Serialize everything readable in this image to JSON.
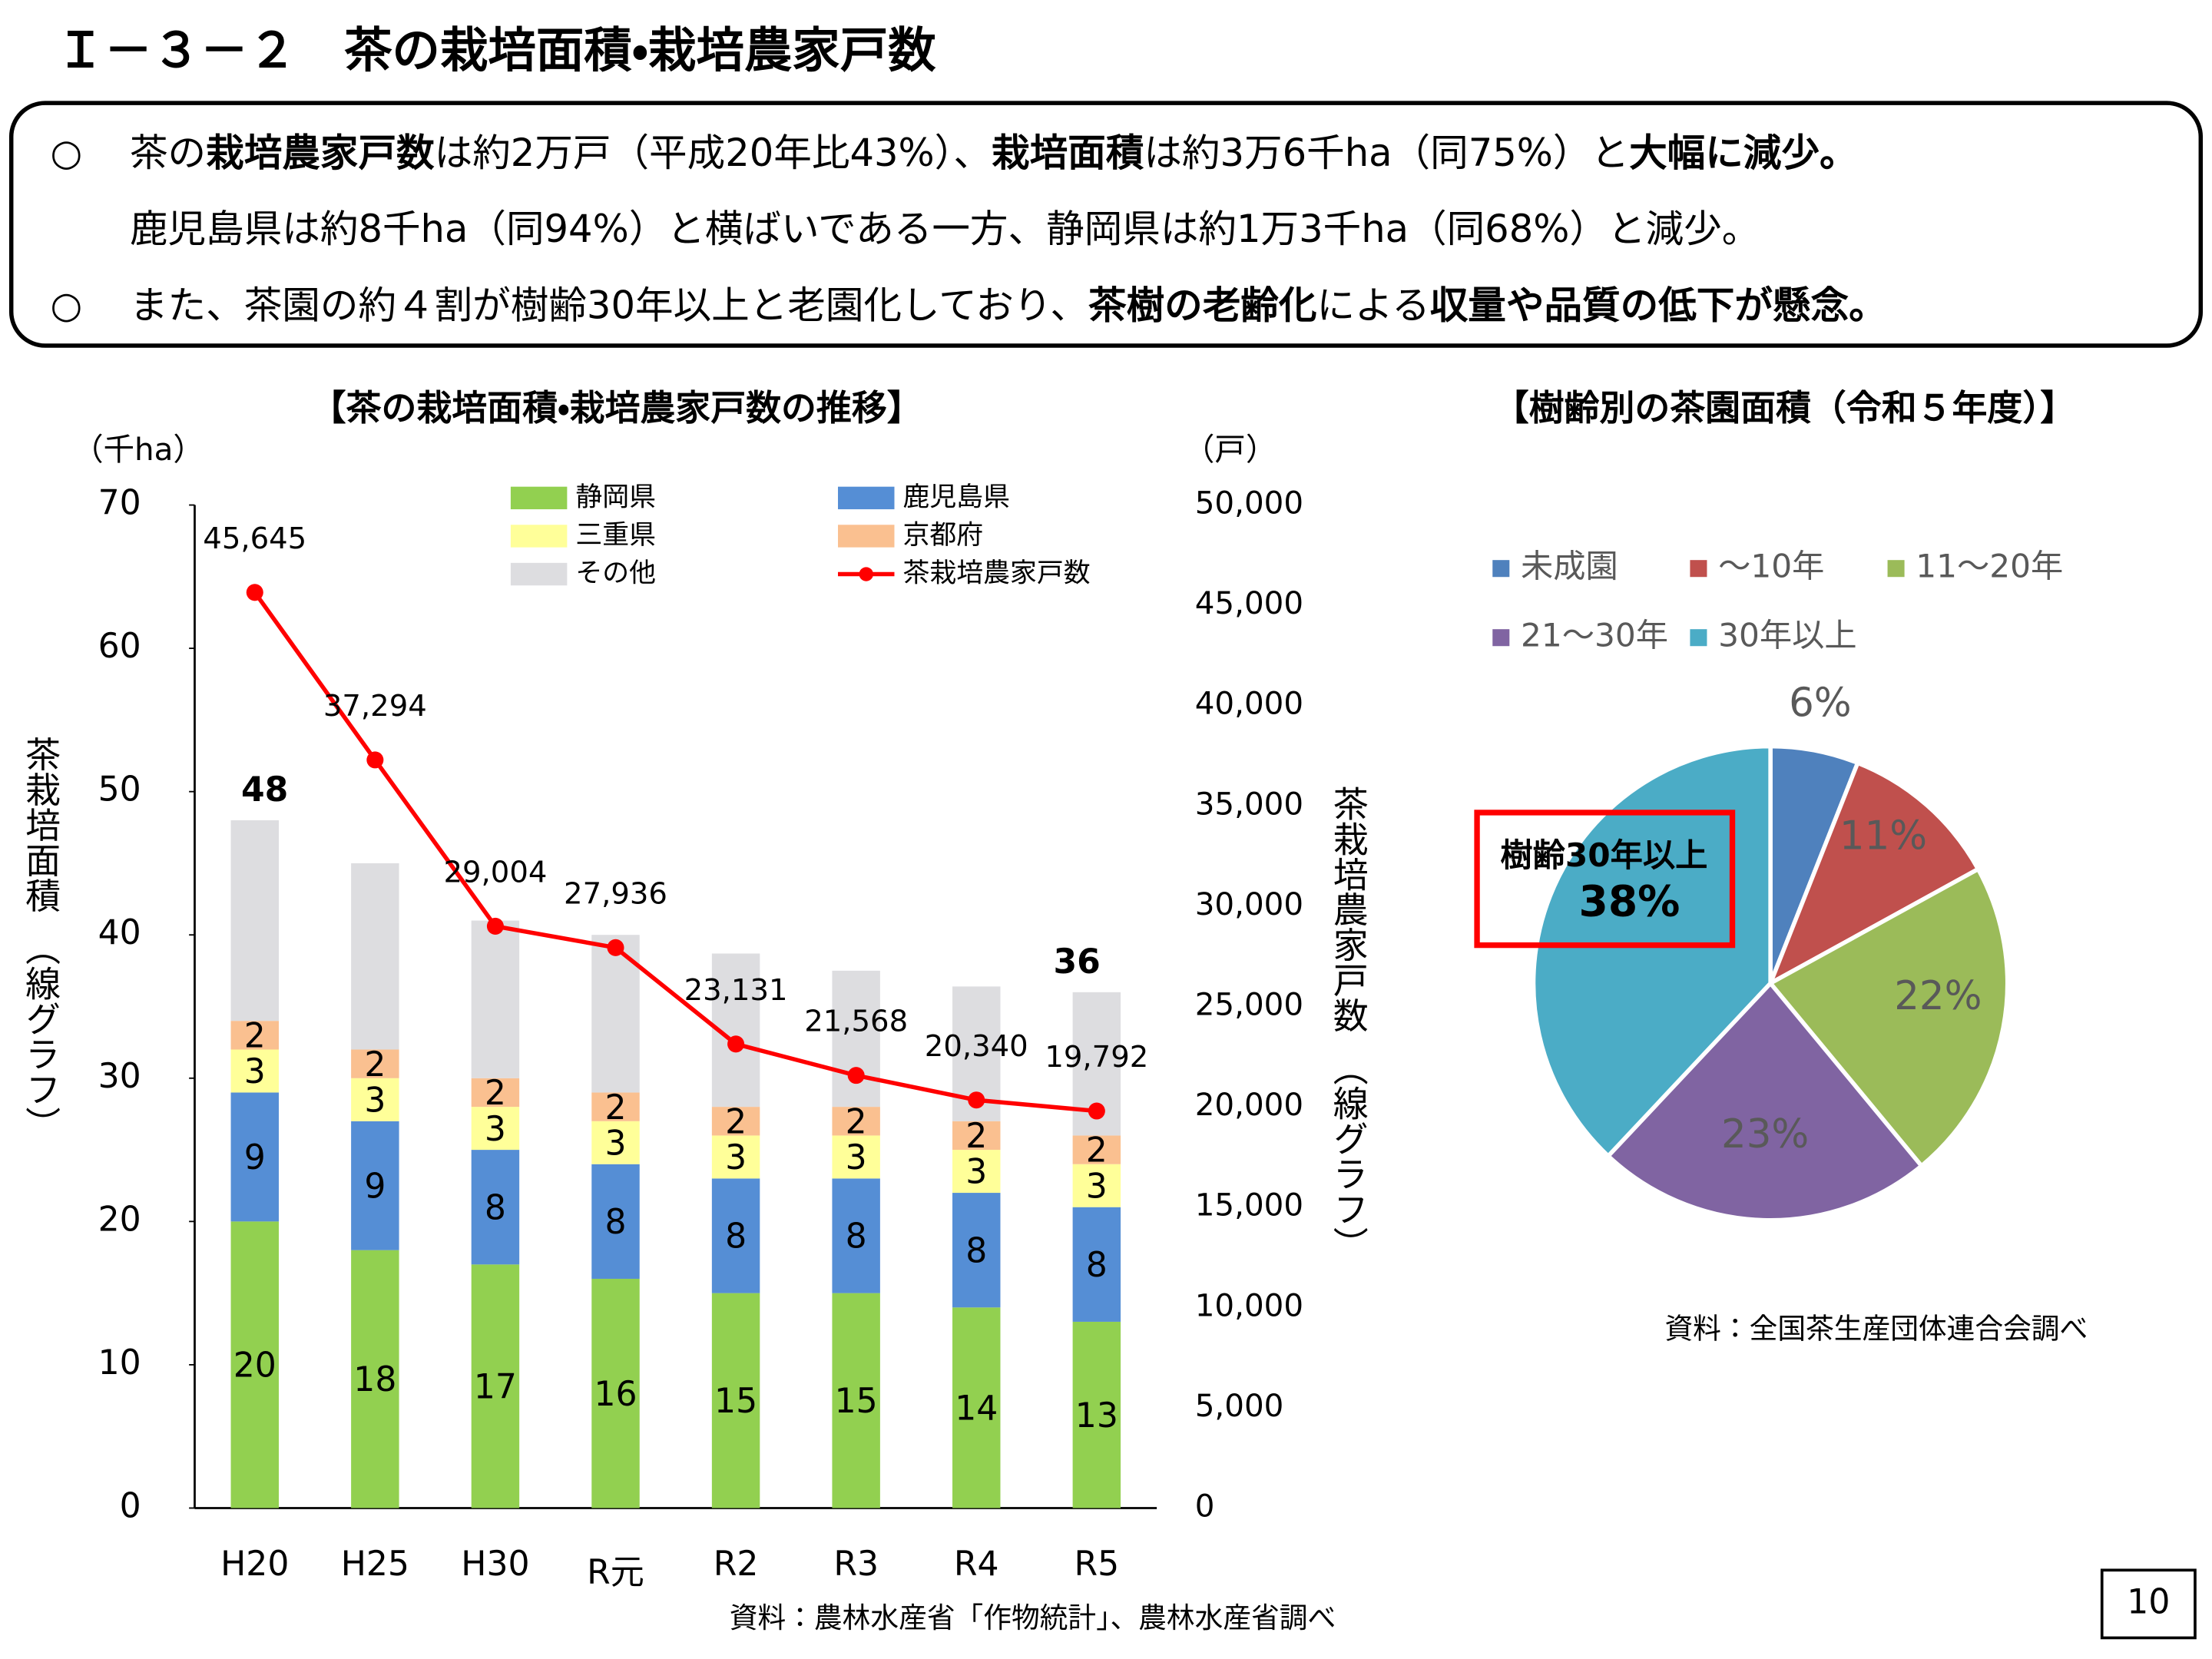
{
  "title": "Ｉ－３－２　茶の栽培面積・栽培農家戸数",
  "summary": {
    "lines": [
      {
        "bullet": "○",
        "segments": [
          {
            "text": "茶の",
            "bold": false
          },
          {
            "text": "栽培農家戸数",
            "bold": true
          },
          {
            "text": "は約2万戸（平成20年比43%）、",
            "bold": false
          },
          {
            "text": "栽培面積",
            "bold": true
          },
          {
            "text": "は約3万6千ha（同75%）と",
            "bold": false
          },
          {
            "text": "大幅に減少。",
            "bold": true
          }
        ]
      },
      {
        "bullet": null,
        "segments": [
          {
            "text": "鹿児島県は約8千ha（同94%）と横ばいである一方、静岡県は約1万3千ha（同68%）と減少。",
            "bold": false
          }
        ]
      },
      {
        "bullet": "○",
        "segments": [
          {
            "text": "また、茶園の約４割が樹齢30年以上と老園化しており、",
            "bold": false
          },
          {
            "text": "茶樹の老齢化",
            "bold": true
          },
          {
            "text": "による",
            "bold": false
          },
          {
            "text": "収量や品質の低下が懸念。",
            "bold": true
          }
        ]
      }
    ]
  },
  "page_number": "10",
  "chart_data": [
    {
      "type": "bar",
      "stacked": true,
      "title": "【茶の栽培面積・栽培農家戸数の推移】",
      "y_unit": "（千ha）",
      "y2_unit": "（戸）",
      "y_label": "茶栽培面積　（線グラフ）",
      "y2_label": "茶栽培農家戸数　（線グラフ）",
      "source": "資料：農林水産省「作物統計」、農林水産省調べ",
      "categories": [
        "H20",
        "H25",
        "H30",
        "R元",
        "R2",
        "R3",
        "R4",
        "R5"
      ],
      "series": [
        {
          "name": "静岡県",
          "color": "#92d050",
          "values": [
            20,
            18,
            17,
            16,
            15,
            15,
            14,
            13
          ]
        },
        {
          "name": "鹿児島県",
          "color": "#558ed5",
          "values": [
            9,
            9,
            8,
            8,
            8,
            8,
            8,
            8
          ]
        },
        {
          "name": "三重県",
          "color": "#ffff99",
          "values": [
            3,
            3,
            3,
            3,
            3,
            3,
            3,
            3
          ]
        },
        {
          "name": "京都府",
          "color": "#fac090",
          "values": [
            2,
            2,
            2,
            2,
            2,
            2,
            2,
            2
          ]
        },
        {
          "name": "その他",
          "color": "#dddde0",
          "values": [
            14,
            13,
            11,
            11,
            10.7,
            9.5,
            9.4,
            10
          ]
        },
        {
          "name": "茶栽培農家戸数",
          "color": "#ff0000",
          "type": "line",
          "axis": "y2",
          "values": [
            45645,
            37294,
            29004,
            27936,
            23131,
            21568,
            20340,
            19792
          ],
          "value_labels": [
            "45,645",
            "37,294",
            "29,004",
            "27,936",
            "23,131",
            "21,568",
            "20,340",
            "19,792"
          ]
        }
      ],
      "totals": [
        48,
        null,
        null,
        null,
        null,
        null,
        null,
        36
      ],
      "ylim": [
        0,
        70
      ],
      "yticks": [
        0,
        10,
        20,
        30,
        40,
        50,
        60,
        70
      ],
      "y2lim": [
        0,
        50000
      ],
      "y2ticks": [
        0,
        {
          "value": 5000,
          "label": "5,000"
        },
        {
          "value": 10000,
          "label": "10,000"
        },
        {
          "value": 15000,
          "label": "15,000"
        },
        {
          "value": 20000,
          "label": "20,000"
        },
        {
          "value": 25000,
          "label": "25,000"
        },
        {
          "value": 30000,
          "label": "30,000"
        },
        {
          "value": 35000,
          "label": "35,000"
        },
        {
          "value": 40000,
          "label": "40,000"
        },
        {
          "value": 45000,
          "label": "45,000"
        },
        {
          "value": 50000,
          "label": "50,000"
        }
      ],
      "grid": false
    },
    {
      "type": "pie",
      "title": "【樹齢別の茶園面積（令和５年度）】",
      "source": "資料：全国茶生産団体連合会調べ",
      "categories": [
        "未成園",
        "～10年",
        "11～20年",
        "21～30年",
        "30年以上"
      ],
      "values": [
        6,
        11,
        22,
        23,
        38
      ],
      "value_labels": [
        "6%",
        "11%",
        "22%",
        "23%",
        "38%"
      ],
      "colors": [
        "#4f81bd",
        "#c0504d",
        "#9bbb59",
        "#8064a2",
        "#4bacc6"
      ],
      "callout": {
        "index": 4,
        "text": "樹齢30年以上",
        "color": "#ff0000"
      }
    }
  ]
}
